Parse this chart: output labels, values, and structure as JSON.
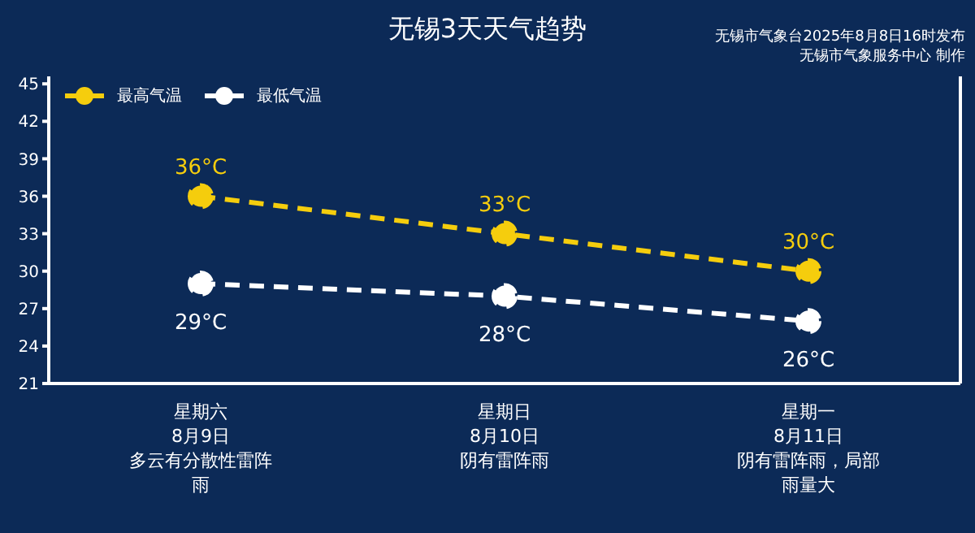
{
  "chart_data": {
    "type": "line",
    "title": "无锡3天天气趋势",
    "subtitle": "无锡市气象台2025年8月8日16时发布",
    "annotations": [
      "无锡市气象服务中心 制作"
    ],
    "categories": [
      "星期六8月9日多云有分散性雷阵雨",
      "星期日8月10日阴有雷阵雨",
      "星期一8月11日阴有雷阵雨，局部雨量大"
    ],
    "series": [
      {
        "name": "最高气温",
        "color": "#f5cd0d",
        "values": [
          36,
          33,
          30
        ],
        "value_labels": [
          "36°C",
          "33°C",
          "30°C"
        ]
      },
      {
        "name": "最低气温",
        "color": "#ffffff",
        "values": [
          29,
          28,
          26
        ],
        "value_labels": [
          "29°C",
          "28°C",
          "26°C"
        ]
      }
    ],
    "ylim": [
      21,
      45.6
    ],
    "yticks": [
      21,
      24,
      27,
      30,
      33,
      36,
      39,
      42,
      45
    ],
    "grid": false,
    "legend": "top left",
    "marker": "circle",
    "line_style": "dashed"
  }
}
